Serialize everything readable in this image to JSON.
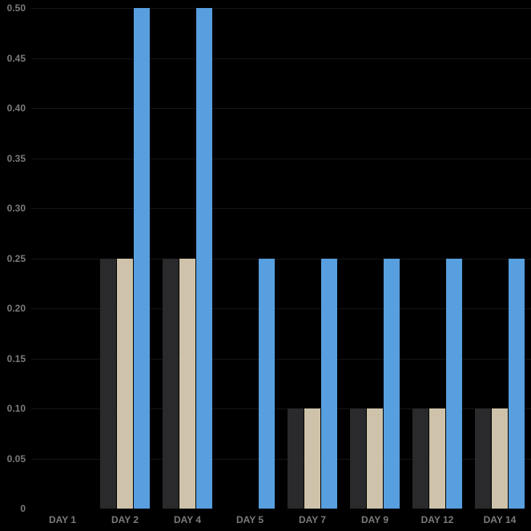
{
  "chart_data": {
    "type": "bar",
    "title": "",
    "xlabel": "",
    "ylabel": "",
    "categories": [
      "DAY 1",
      "DAY 2",
      "DAY 4",
      "DAY 5",
      "DAY 7",
      "DAY 9",
      "DAY 12",
      "DAY 14"
    ],
    "series": [
      {
        "name": "dark-gray",
        "color": "#2A2A2C",
        "values": [
          0,
          0.25,
          0.25,
          0,
          0.1,
          0.1,
          0.1,
          0.1
        ]
      },
      {
        "name": "tan",
        "color": "#CEC3AA",
        "values": [
          0,
          0.25,
          0.25,
          0,
          0.1,
          0.1,
          0.1,
          0.1
        ]
      },
      {
        "name": "blue",
        "color": "#579FDF",
        "values": [
          0,
          0.5,
          0.5,
          0.25,
          0.25,
          0.25,
          0.25,
          0.25
        ]
      }
    ],
    "ylim": [
      0,
      0.5
    ],
    "y_ticks": [
      0,
      0.05,
      0.1,
      0.15,
      0.2,
      0.25,
      0.3,
      0.35,
      0.4,
      0.45,
      0.5
    ],
    "y_tick_labels": [
      "0",
      "0.05",
      "0.10",
      "0.15",
      "0.20",
      "0.25",
      "0.30",
      "0.35",
      "0.40",
      "0.45",
      "0.50"
    ],
    "legend_position": "none",
    "grid": "faint",
    "colors": {
      "background": "#000000",
      "tick_label": "#7B7B7B",
      "grid_line": "#161616"
    }
  }
}
